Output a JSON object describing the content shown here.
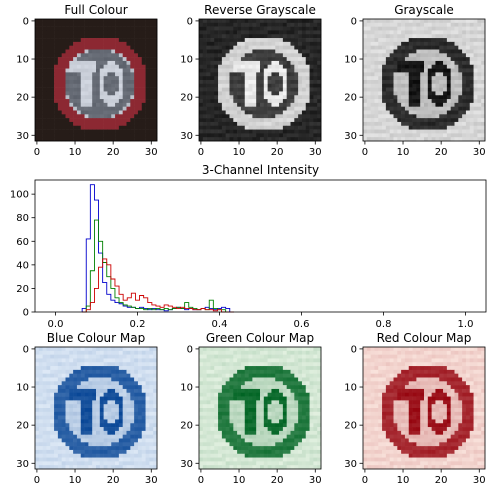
{
  "chart_data": [
    {
      "type": "image",
      "title": "Full Colour",
      "colormap": "rgb",
      "xticks": [
        "0",
        "10",
        "20",
        "30"
      ],
      "yticks": [
        "0",
        "10",
        "20",
        "30"
      ],
      "xlim": [
        0,
        31
      ],
      "ylim": [
        31,
        0
      ],
      "content": "70"
    },
    {
      "type": "image",
      "title": "Reverse Grayscale",
      "colormap": "gray",
      "xticks": [
        "0",
        "10",
        "20",
        "30"
      ],
      "yticks": [
        "0",
        "10",
        "20",
        "30"
      ],
      "xlim": [
        0,
        31
      ],
      "ylim": [
        31,
        0
      ],
      "content": "70"
    },
    {
      "type": "image",
      "title": "Grayscale",
      "colormap": "gray_r",
      "xticks": [
        "0",
        "10",
        "20",
        "30"
      ],
      "yticks": [
        "0",
        "10",
        "20",
        "30"
      ],
      "xlim": [
        0,
        31
      ],
      "ylim": [
        31,
        0
      ],
      "content": "70"
    },
    {
      "type": "line",
      "title": "3-Channel Intensity",
      "xlim": [
        -0.05,
        1.05
      ],
      "ylim": [
        0,
        112
      ],
      "xticks": [
        "0.0",
        "0.2",
        "0.4",
        "0.6",
        "0.8",
        "1.0"
      ],
      "yticks": [
        "0",
        "20",
        "40",
        "60",
        "80",
        "100"
      ],
      "x": [
        0.07,
        0.08,
        0.09,
        0.1,
        0.11,
        0.12,
        0.13,
        0.14,
        0.15,
        0.16,
        0.17,
        0.18,
        0.19,
        0.2,
        0.21,
        0.22,
        0.23,
        0.24,
        0.25,
        0.26,
        0.27,
        0.28,
        0.29,
        0.3,
        0.31,
        0.32,
        0.33,
        0.34,
        0.35,
        0.36,
        0.37,
        0.38,
        0.39,
        0.4,
        0.41,
        0.42,
        0.43
      ],
      "series": [
        {
          "color": "#0000cc",
          "values": [
            3,
            62,
            108,
            95,
            50,
            25,
            15,
            10,
            8,
            7,
            5,
            4,
            4,
            3,
            4,
            3,
            2,
            3,
            2,
            2,
            1,
            2,
            3,
            4,
            3,
            2,
            3,
            2,
            2,
            3,
            4,
            3,
            2,
            3,
            4,
            3,
            0
          ]
        },
        {
          "color": "#008000",
          "values": [
            0,
            5,
            35,
            78,
            60,
            42,
            30,
            20,
            12,
            8,
            6,
            5,
            4,
            3,
            3,
            2,
            3,
            2,
            3,
            2,
            3,
            2,
            3,
            4,
            3,
            8,
            4,
            3,
            2,
            3,
            2,
            10,
            3,
            2,
            2,
            0,
            0
          ]
        },
        {
          "color": "#cc0000",
          "values": [
            0,
            2,
            8,
            20,
            38,
            45,
            40,
            28,
            22,
            15,
            10,
            12,
            16,
            10,
            14,
            12,
            8,
            6,
            5,
            4,
            6,
            5,
            4,
            3,
            4,
            3,
            3,
            2,
            2,
            3,
            2,
            2,
            1,
            2,
            0,
            0,
            0
          ]
        }
      ]
    },
    {
      "type": "image",
      "title": "Blue Colour Map",
      "colormap": "Blues",
      "xticks": [
        "0",
        "10",
        "20",
        "30"
      ],
      "yticks": [
        "0",
        "10",
        "20",
        "30"
      ],
      "xlim": [
        0,
        31
      ],
      "ylim": [
        31,
        0
      ],
      "content": "70"
    },
    {
      "type": "image",
      "title": "Green Colour Map",
      "colormap": "Greens",
      "xticks": [
        "0",
        "10",
        "20",
        "30"
      ],
      "yticks": [
        "0",
        "10",
        "20",
        "30"
      ],
      "xlim": [
        0,
        31
      ],
      "ylim": [
        31,
        0
      ],
      "content": "70"
    },
    {
      "type": "image",
      "title": "Red Colour Map",
      "colormap": "Reds",
      "xticks": [
        "0",
        "10",
        "20",
        "30"
      ],
      "yticks": [
        "0",
        "10",
        "20",
        "30"
      ],
      "xlim": [
        0,
        31
      ],
      "ylim": [
        31,
        0
      ],
      "content": "70"
    }
  ]
}
